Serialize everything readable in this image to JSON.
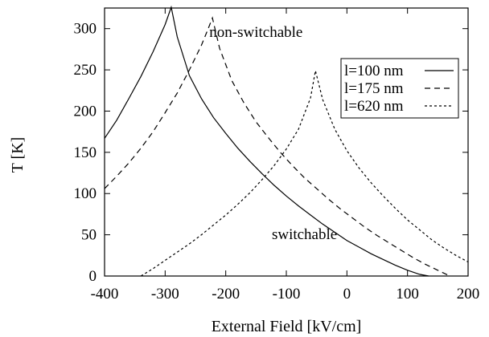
{
  "chart_data": {
    "type": "line",
    "title": "",
    "xlabel": "External Field [kV/cm]",
    "ylabel": "T [K]",
    "xlim": [
      -400,
      200
    ],
    "ylim": [
      0,
      325
    ],
    "xticks": [
      -400,
      -300,
      -200,
      -100,
      0,
      100,
      200
    ],
    "yticks": [
      0,
      50,
      100,
      150,
      200,
      250,
      300
    ],
    "grid": false,
    "legend_position": "top-right",
    "annotations": [
      {
        "text": "non-switchable",
        "x": -150,
        "y": 290
      },
      {
        "text": "switchable",
        "x": -70,
        "y": 45
      }
    ],
    "series": [
      {
        "name": "l=100 nm",
        "dash": "solid",
        "color": "#000000",
        "x": [
          -400,
          -380,
          -360,
          -340,
          -320,
          -300,
          -290,
          -280,
          -260,
          -240,
          -220,
          -200,
          -180,
          -160,
          -140,
          -120,
          -100,
          -80,
          -60,
          -40,
          -20,
          0,
          20,
          40,
          60,
          80,
          100,
          120,
          135
        ],
        "y": [
          167,
          189,
          215,
          242,
          272,
          305,
          326,
          290,
          243,
          215,
          192,
          173,
          155,
          139,
          124,
          110,
          97,
          85,
          74,
          63,
          53,
          43,
          35,
          27,
          20,
          13,
          7,
          2,
          0
        ]
      },
      {
        "name": "l=175 nm",
        "dash": "dashed",
        "color": "#000000",
        "x": [
          -400,
          -380,
          -360,
          -340,
          -320,
          -300,
          -280,
          -260,
          -240,
          -230,
          -222,
          -210,
          -190,
          -170,
          -150,
          -130,
          -110,
          -90,
          -70,
          -50,
          -30,
          -10,
          10,
          30,
          50,
          70,
          90,
          110,
          130,
          150,
          170
        ],
        "y": [
          106,
          121,
          137,
          155,
          175,
          198,
          222,
          250,
          280,
          298,
          313,
          276,
          237,
          210,
          187,
          168,
          150,
          134,
          119,
          106,
          93,
          81,
          70,
          59,
          49,
          40,
          31,
          22,
          14,
          7,
          0
        ]
      },
      {
        "name": "l=620 nm",
        "dash": "dotted",
        "color": "#000000",
        "x": [
          -340,
          -320,
          -300,
          -280,
          -260,
          -240,
          -220,
          -200,
          -180,
          -160,
          -140,
          -120,
          -100,
          -80,
          -60,
          -52,
          -40,
          -20,
          0,
          20,
          40,
          60,
          80,
          100,
          120,
          140,
          160,
          180,
          200
        ],
        "y": [
          0,
          9,
          19,
          29,
          39,
          50,
          62,
          74,
          87,
          101,
          117,
          134,
          154,
          178,
          216,
          249,
          214,
          178,
          152,
          131,
          113,
          97,
          82,
          68,
          56,
          44,
          34,
          25,
          17
        ]
      }
    ]
  }
}
